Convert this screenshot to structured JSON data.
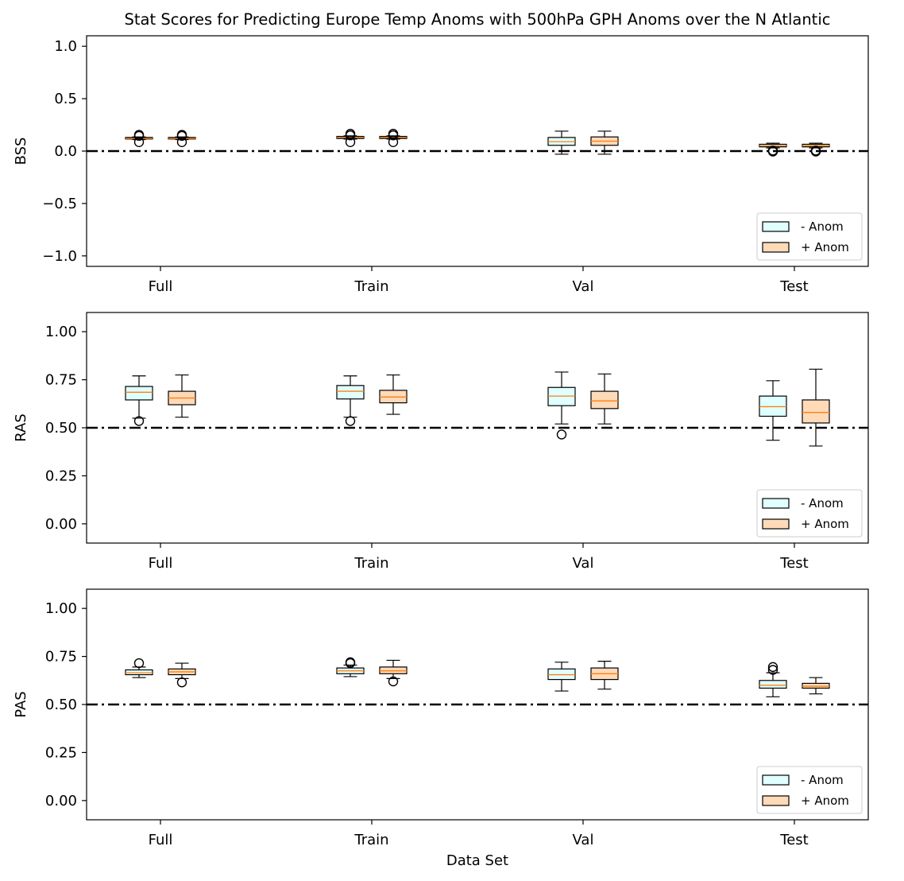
{
  "chart_data": {
    "type": "box",
    "title": "Stat Scores for Predicting Europe Temp Anoms with 500hPa GPH Anoms over the N Atlantic",
    "xlabel": "Data Set",
    "categories": [
      "Full",
      "Train",
      "Val",
      "Test"
    ],
    "legend": {
      "placement": "lower-right",
      "entries": [
        {
          "label": "- Anom",
          "color": "#e0ffff"
        },
        {
          "label": "+ Anom",
          "color": "#ffdab9"
        }
      ]
    },
    "median_color": "#ff7f0e",
    "reference_line_style": "dash-dot",
    "panels": [
      {
        "ylabel": "BSS",
        "ylim": [
          -1.1,
          1.1
        ],
        "yticks": [
          -1.0,
          -0.5,
          0.0,
          0.5,
          1.0
        ],
        "ytick_labels": [
          "−1.0",
          "−0.5",
          "0.0",
          "0.5",
          "1.0"
        ],
        "reference_line": 0.0,
        "series": [
          {
            "name": "- Anom",
            "color": "#e0ffff",
            "boxes": [
              {
                "whislo": 0.11,
                "q1": 0.115,
                "med": 0.12,
                "q3": 0.13,
                "whishi": 0.135,
                "fliers": [
                  0.085,
                  0.155,
                  0.145
                ]
              },
              {
                "whislo": 0.115,
                "q1": 0.12,
                "med": 0.13,
                "q3": 0.14,
                "whishi": 0.145,
                "fliers": [
                  0.085,
                  0.165,
                  0.15
                ]
              },
              {
                "whislo": -0.03,
                "q1": 0.055,
                "med": 0.09,
                "q3": 0.13,
                "whishi": 0.19,
                "fliers": []
              },
              {
                "whislo": 0.03,
                "q1": 0.04,
                "med": 0.05,
                "q3": 0.065,
                "whishi": 0.075,
                "fliers": [
                  -0.005,
                  0.005
                ]
              }
            ]
          },
          {
            "name": "+ Anom",
            "color": "#ffdab9",
            "boxes": [
              {
                "whislo": 0.11,
                "q1": 0.115,
                "med": 0.12,
                "q3": 0.13,
                "whishi": 0.135,
                "fliers": [
                  0.085,
                  0.155,
                  0.145
                ]
              },
              {
                "whislo": 0.115,
                "q1": 0.12,
                "med": 0.13,
                "q3": 0.14,
                "whishi": 0.145,
                "fliers": [
                  0.085,
                  0.165,
                  0.15
                ]
              },
              {
                "whislo": -0.03,
                "q1": 0.055,
                "med": 0.095,
                "q3": 0.135,
                "whishi": 0.19,
                "fliers": []
              },
              {
                "whislo": 0.03,
                "q1": 0.04,
                "med": 0.05,
                "q3": 0.065,
                "whishi": 0.075,
                "fliers": [
                  -0.005,
                  0.005
                ]
              }
            ]
          }
        ]
      },
      {
        "ylabel": "RAS",
        "ylim": [
          -0.1,
          1.1
        ],
        "yticks": [
          0.0,
          0.25,
          0.5,
          0.75,
          1.0
        ],
        "ytick_labels": [
          "0.00",
          "0.25",
          "0.50",
          "0.75",
          "1.00"
        ],
        "reference_line": 0.5,
        "series": [
          {
            "name": "- Anom",
            "color": "#e0ffff",
            "boxes": [
              {
                "whislo": 0.55,
                "q1": 0.645,
                "med": 0.685,
                "q3": 0.715,
                "whishi": 0.77,
                "fliers": [
                  0.535
                ]
              },
              {
                "whislo": 0.555,
                "q1": 0.65,
                "med": 0.69,
                "q3": 0.72,
                "whishi": 0.77,
                "fliers": [
                  0.535
                ]
              },
              {
                "whislo": 0.52,
                "q1": 0.615,
                "med": 0.665,
                "q3": 0.71,
                "whishi": 0.79,
                "fliers": [
                  0.465
                ]
              },
              {
                "whislo": 0.435,
                "q1": 0.56,
                "med": 0.61,
                "q3": 0.665,
                "whishi": 0.745,
                "fliers": []
              }
            ]
          },
          {
            "name": "+ Anom",
            "color": "#ffdab9",
            "boxes": [
              {
                "whislo": 0.555,
                "q1": 0.62,
                "med": 0.655,
                "q3": 0.69,
                "whishi": 0.775,
                "fliers": []
              },
              {
                "whislo": 0.57,
                "q1": 0.63,
                "med": 0.66,
                "q3": 0.695,
                "whishi": 0.775,
                "fliers": []
              },
              {
                "whislo": 0.52,
                "q1": 0.6,
                "med": 0.64,
                "q3": 0.69,
                "whishi": 0.78,
                "fliers": []
              },
              {
                "whislo": 0.405,
                "q1": 0.525,
                "med": 0.58,
                "q3": 0.645,
                "whishi": 0.805,
                "fliers": []
              }
            ]
          }
        ]
      },
      {
        "ylabel": "PAS",
        "ylim": [
          -0.1,
          1.1
        ],
        "yticks": [
          0.0,
          0.25,
          0.5,
          0.75,
          1.0
        ],
        "ytick_labels": [
          "0.00",
          "0.25",
          "0.50",
          "0.75",
          "1.00"
        ],
        "reference_line": 0.5,
        "series": [
          {
            "name": "- Anom",
            "color": "#e0ffff",
            "boxes": [
              {
                "whislo": 0.64,
                "q1": 0.655,
                "med": 0.665,
                "q3": 0.68,
                "whishi": 0.695,
                "fliers": [
                  0.715
                ]
              },
              {
                "whislo": 0.645,
                "q1": 0.66,
                "med": 0.675,
                "q3": 0.69,
                "whishi": 0.705,
                "fliers": [
                  0.715,
                  0.72
                ]
              },
              {
                "whislo": 0.57,
                "q1": 0.63,
                "med": 0.655,
                "q3": 0.685,
                "whishi": 0.72,
                "fliers": []
              },
              {
                "whislo": 0.54,
                "q1": 0.585,
                "med": 0.6,
                "q3": 0.625,
                "whishi": 0.665,
                "fliers": [
                  0.68,
                  0.695
                ]
              }
            ]
          },
          {
            "name": "+ Anom",
            "color": "#ffdab9",
            "boxes": [
              {
                "whislo": 0.635,
                "q1": 0.655,
                "med": 0.67,
                "q3": 0.685,
                "whishi": 0.715,
                "fliers": [
                  0.615
                ]
              },
              {
                "whislo": 0.635,
                "q1": 0.66,
                "med": 0.675,
                "q3": 0.695,
                "whishi": 0.73,
                "fliers": [
                  0.62
                ]
              },
              {
                "whislo": 0.58,
                "q1": 0.63,
                "med": 0.66,
                "q3": 0.69,
                "whishi": 0.725,
                "fliers": []
              },
              {
                "whislo": 0.555,
                "q1": 0.585,
                "med": 0.595,
                "q3": 0.61,
                "whishi": 0.64,
                "fliers": []
              }
            ]
          }
        ]
      }
    ]
  }
}
